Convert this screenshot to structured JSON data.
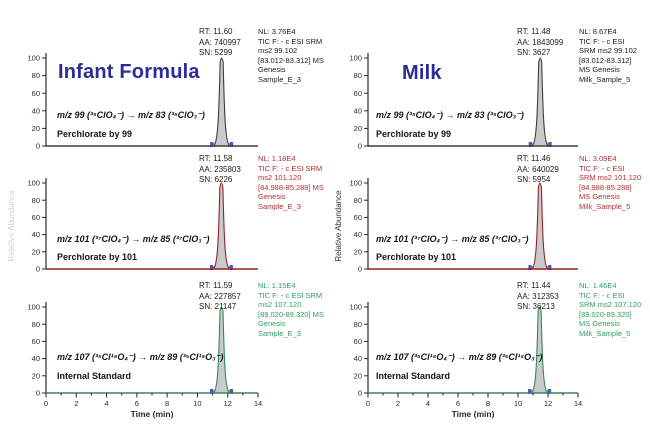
{
  "figure": {
    "left_title": "Infant Formula",
    "right_title": "Milk",
    "title_color": "#2b2b9a"
  },
  "chart_data": {
    "type": "area",
    "xlabel": "Time (min)",
    "ylabel": "Relative Abundance",
    "xlim": [
      0,
      14
    ],
    "ylim": [
      0,
      100
    ],
    "xticks": [
      0,
      2,
      4,
      6,
      8,
      10,
      12,
      14
    ],
    "yticks": [
      0,
      20,
      40,
      60,
      80,
      100
    ],
    "grid": false,
    "peak_fill_color": "#cacacd",
    "integration_marker_colors": {
      "strip": "#9494da",
      "ends": "#5252c6"
    },
    "axis_color": "#2a2a2a",
    "panels": [
      {
        "id": "infant-formula-perchlorate-99",
        "column": "left",
        "row": 0,
        "rt_label": "RT: 11.60",
        "aa_label": "AA: 740997",
        "sn_label": "SN: 5299",
        "nl_text": "NL: 3.76E4\nTIC F: - c ESI SRM\nms2 99.102\n[83.012-83.312] MS\nGenesis\nSample_E_3",
        "transition": "m/z 99 (³⁵ClO₄⁻)  →  m/z 83 (³⁵ClO₃⁻)",
        "assay": "Perchlorate by 99",
        "peak_rt_min": 11.6,
        "peak_height_pct": 100,
        "line_color": "#3c3c3c",
        "annotation_color": "#1c1c1c"
      },
      {
        "id": "infant-formula-perchlorate-101",
        "column": "left",
        "row": 1,
        "rt_label": "RT: 11.58",
        "aa_label": "AA: 235803",
        "sn_label": "SN: 6226",
        "nl_text": "NL: 1.18E4\nTIC F: - c ESI SRM\nms2 101.120\n[84.988-85.288] MS\nGenesis\nSample_E_3",
        "transition": "m/z 101 (³⁷ClO₄⁻)  →  m/z 85 (³⁷ClO₃⁻)",
        "assay": "Perchlorate by 101",
        "peak_rt_min": 11.58,
        "peak_height_pct": 100,
        "line_color": "#96201f",
        "annotation_color": "#b22f2f"
      },
      {
        "id": "infant-formula-internal-standard",
        "column": "left",
        "row": 2,
        "rt_label": "RT: 11.59",
        "aa_label": "AA: 227857",
        "sn_label": "SN: 21147",
        "nl_text": "NL: 1.15E4\nTIC F: - c ESI SRM\nms2 107.120\n[89.020-89.320] MS\nGenesis\nSample_E_3",
        "transition": "m/z 107 (³⁵Cl¹⁸O₄⁻)  →  m/z 89 (³⁵Cl¹⁸O₃⁻)",
        "assay": "Internal Standard",
        "peak_rt_min": 11.59,
        "peak_height_pct": 100,
        "line_color": "#2e8b57",
        "annotation_color": "#2f9e60"
      },
      {
        "id": "milk-perchlorate-99",
        "column": "right",
        "row": 0,
        "rt_label": "RT: 11.48",
        "aa_label": "AA: 1843099",
        "sn_label": "SN: 3627",
        "nl_text": "NL: 8.67E4\nTIC F: - c ESI\nSRM ms2 99.102\n[83.012-83.312]\nMS Genesis\nMilk_Sample_5",
        "transition": "m/z 99 (³⁵ClO₄⁻)  →  m/z 83 (³⁵ClO₃⁻)",
        "assay": "Perchlorate by 99",
        "peak_rt_min": 11.48,
        "peak_height_pct": 100,
        "line_color": "#3c3c3c",
        "annotation_color": "#1c1c1c"
      },
      {
        "id": "milk-perchlorate-101",
        "column": "right",
        "row": 1,
        "rt_label": "RT: 11.46",
        "aa_label": "AA: 640029",
        "sn_label": "SN: 5954",
        "nl_text": "NL: 3.09E4\nTIC F: - c ESI\nSRM ms2 101.120\n[84.988-85.288]\nMS Genesis\nMilk_Sample_5",
        "transition": "m/z 101 (³⁷ClO₄⁻)  →  m/z 85 (³⁷ClO₃⁻)",
        "assay": "Perchlorate by 101",
        "peak_rt_min": 11.46,
        "peak_height_pct": 100,
        "line_color": "#96201f",
        "annotation_color": "#b22f2f"
      },
      {
        "id": "milk-internal-standard",
        "column": "right",
        "row": 2,
        "rt_label": "RT: 11.44",
        "aa_label": "AA: 312353",
        "sn_label": "SN: 36213",
        "nl_text": "NL: 1.46E4\nTIC F: - c ESI\nSRM ms2 107.120\n[89.020-89.320]\nMS Genesis\nMilk_Sample_5",
        "transition": "m/z 107 (³⁵Cl¹⁸O₄⁻)  →  m/z 89 (³⁵Cl¹⁸O₃⁻)",
        "assay": "Internal Standard",
        "peak_rt_min": 11.44,
        "peak_height_pct": 100,
        "line_color": "#2e8b57",
        "annotation_color": "#2f9e60"
      }
    ]
  }
}
